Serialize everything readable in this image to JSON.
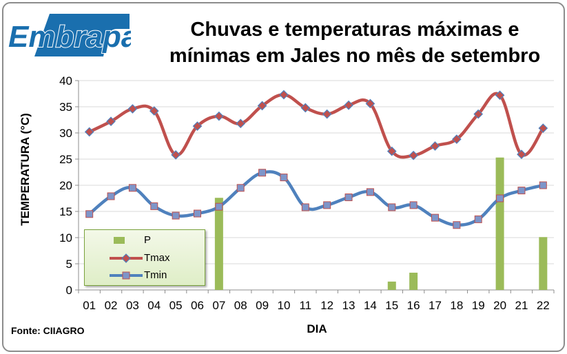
{
  "header": {
    "logo_text": "Embrapa",
    "title_line1": "Chuvas e temperaturas máximas e",
    "title_line2": "mínimas em Jales no mês de setembro",
    "source": "Fonte: CIIAGRO"
  },
  "colors": {
    "precip": "#9bbb59",
    "tmax": "#c0504d",
    "tmax_marker_edge": "#4f81bd",
    "tmin": "#4f81bd",
    "tmin_marker": "#7e95c9",
    "logo": "#1a6fae",
    "grid": "#d9d9d9"
  },
  "chart_data": {
    "type": "line",
    "xlabel": "DIA",
    "ylabel": "TEMPERATURA (°C)",
    "ylim": [
      0,
      40
    ],
    "yticks": [
      0,
      5,
      10,
      15,
      20,
      25,
      30,
      35,
      40
    ],
    "grid": true,
    "legend_position": "bottom-left",
    "categories": [
      "01",
      "02",
      "03",
      "04",
      "05",
      "06",
      "07",
      "08",
      "09",
      "10",
      "11",
      "12",
      "13",
      "14",
      "15",
      "16",
      "17",
      "18",
      "19",
      "20",
      "21",
      "22"
    ],
    "series": [
      {
        "name": "P",
        "type": "bar",
        "values": [
          0,
          0,
          0,
          0,
          0,
          0,
          17.6,
          0,
          0,
          0,
          0,
          0,
          0,
          0,
          1.6,
          3.3,
          0,
          0,
          0,
          25.3,
          0,
          10.1
        ]
      },
      {
        "name": "Tmax",
        "type": "line",
        "marker": "diamond",
        "values": [
          30.2,
          32.2,
          34.6,
          34.2,
          25.8,
          31.3,
          33.2,
          31.8,
          35.2,
          37.3,
          34.8,
          33.6,
          35.3,
          35.6,
          26.5,
          25.7,
          27.5,
          28.8,
          33.6,
          37.2,
          25.9,
          30.9
        ]
      },
      {
        "name": "Tmin",
        "type": "line",
        "marker": "square",
        "values": [
          14.5,
          17.9,
          19.5,
          16.0,
          14.2,
          14.6,
          15.9,
          19.5,
          22.4,
          21.5,
          15.8,
          16.2,
          17.7,
          18.7,
          15.8,
          16.2,
          13.8,
          12.4,
          13.5,
          17.5,
          19.0,
          20.0
        ]
      }
    ]
  }
}
